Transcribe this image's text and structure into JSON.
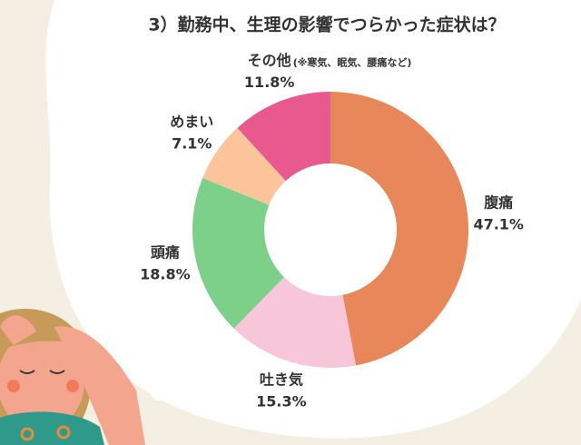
{
  "chart_data": {
    "type": "donut",
    "title": "3）勤務中、生理の影響でつらかった症状は？",
    "categories": [
      "腹痛",
      "吐き気",
      "頭痛",
      "めまい",
      "その他"
    ],
    "values": [
      47.1,
      15.3,
      18.8,
      7.1,
      11.8
    ],
    "value_labels": [
      "47.1%",
      "15.3%",
      "18.8%",
      "7.1%",
      "11.8%"
    ],
    "colors": [
      "#e8885a",
      "#f7c6d8",
      "#7dd08a",
      "#fbc49a",
      "#e85a8e"
    ],
    "annotation": "(※寒気、眠気、腰痛など)"
  }
}
